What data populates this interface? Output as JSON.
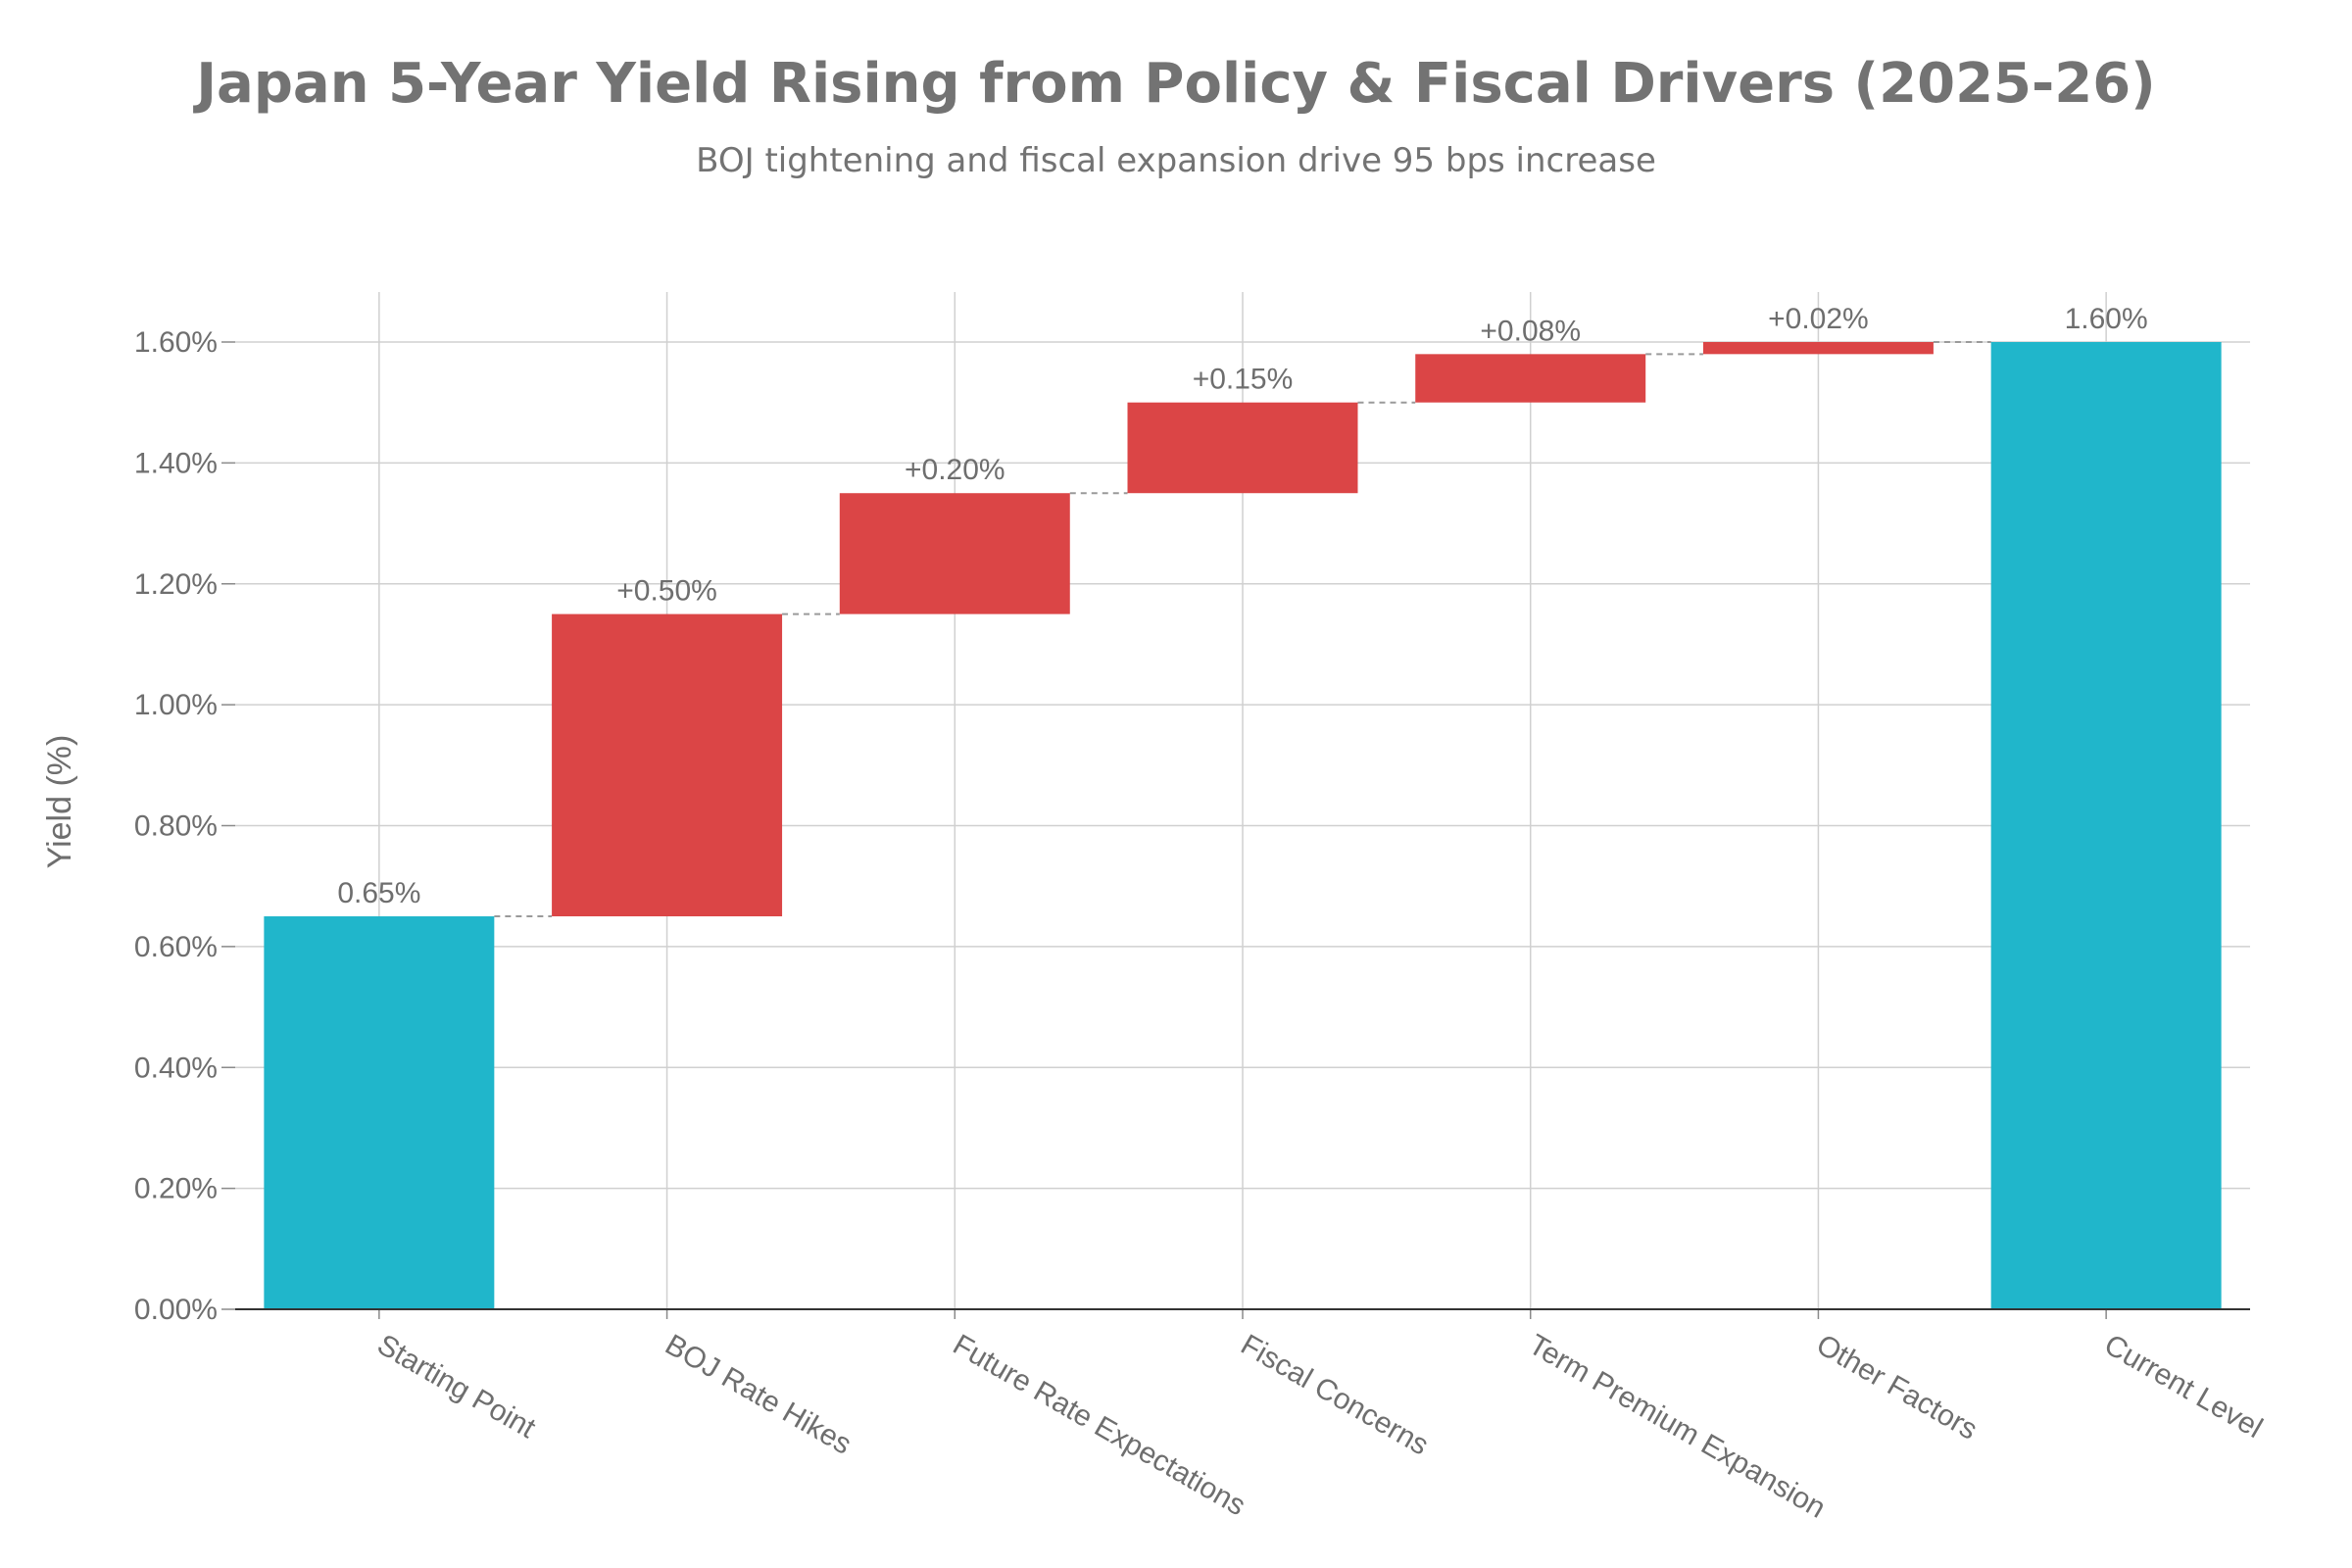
{
  "chart_data": {
    "type": "waterfall",
    "title": "Japan 5-Year Yield Rising from Policy & Fiscal Drivers (2025-26)",
    "subtitle": "BOJ tightening and fiscal expansion drive 95 bps increase",
    "ylabel": "Yield (%)",
    "xlabel": "",
    "ylim": [
      0,
      1.6
    ],
    "yticks": [
      {
        "value": 0.0,
        "label": "0.00%"
      },
      {
        "value": 0.2,
        "label": "0.20%"
      },
      {
        "value": 0.4,
        "label": "0.40%"
      },
      {
        "value": 0.6,
        "label": "0.60%"
      },
      {
        "value": 0.8,
        "label": "0.80%"
      },
      {
        "value": 1.0,
        "label": "1.00%"
      },
      {
        "value": 1.2,
        "label": "1.20%"
      },
      {
        "value": 1.4,
        "label": "1.40%"
      },
      {
        "value": 1.6,
        "label": "1.60%"
      }
    ],
    "bars": [
      {
        "category": "Starting Point",
        "kind": "total",
        "value": 0.65,
        "label": "0.65%"
      },
      {
        "category": "BOJ Rate Hikes",
        "kind": "increase",
        "value": 0.5,
        "label": "+0.50%"
      },
      {
        "category": "Future Rate Expectations",
        "kind": "increase",
        "value": 0.2,
        "label": "+0.20%"
      },
      {
        "category": "Fiscal Concerns",
        "kind": "increase",
        "value": 0.15,
        "label": "+0.15%"
      },
      {
        "category": "Term Premium Expansion",
        "kind": "increase",
        "value": 0.08,
        "label": "+0.08%"
      },
      {
        "category": "Other Factors",
        "kind": "increase",
        "value": 0.02,
        "label": "+0.02%"
      },
      {
        "category": "Current Level",
        "kind": "total",
        "value": 1.6,
        "label": "1.60%"
      }
    ],
    "colors": {
      "total": "#20B6CB",
      "increase": "#DB4546"
    },
    "grid": true,
    "legend": "none"
  }
}
